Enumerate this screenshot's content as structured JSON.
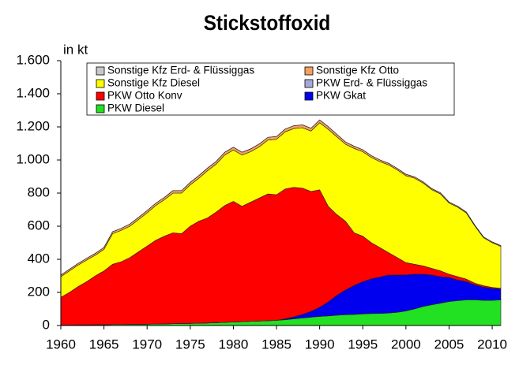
{
  "chart_data": {
    "type": "stacked-area",
    "title": "Stickstoffoxid",
    "y_label": "in kt",
    "x": [
      1960,
      1961,
      1962,
      1963,
      1964,
      1965,
      1966,
      1967,
      1968,
      1969,
      1970,
      1971,
      1972,
      1973,
      1974,
      1975,
      1976,
      1977,
      1978,
      1979,
      1980,
      1981,
      1982,
      1983,
      1984,
      1985,
      1986,
      1987,
      1988,
      1989,
      1990,
      1991,
      1992,
      1993,
      1994,
      1995,
      1996,
      1997,
      1998,
      1999,
      2000,
      2001,
      2002,
      2003,
      2004,
      2005,
      2006,
      2007,
      2008,
      2009,
      2010,
      2011
    ],
    "series": [
      {
        "name": "PKW Diesel",
        "color": "#22e022",
        "values": [
          3,
          3,
          4,
          4,
          5,
          5,
          6,
          6,
          7,
          7,
          8,
          9,
          10,
          11,
          12,
          13,
          14,
          15,
          17,
          19,
          21,
          23,
          25,
          27,
          29,
          31,
          35,
          40,
          45,
          50,
          55,
          58,
          62,
          65,
          67,
          70,
          72,
          73,
          75,
          80,
          88,
          100,
          115,
          125,
          135,
          145,
          150,
          155,
          155,
          152,
          152,
          155
        ]
      },
      {
        "name": "PKW Gkat",
        "color": "#0000ee",
        "values": [
          0,
          0,
          0,
          0,
          0,
          0,
          0,
          0,
          0,
          0,
          0,
          0,
          0,
          0,
          0,
          0,
          0,
          0,
          0,
          0,
          0,
          0,
          0,
          0,
          0,
          0,
          5,
          12,
          22,
          35,
          55,
          85,
          120,
          150,
          175,
          195,
          210,
          220,
          230,
          225,
          218,
          210,
          195,
          180,
          160,
          145,
          125,
          110,
          90,
          80,
          72,
          65
        ]
      },
      {
        "name": "PKW Erd- & Flüssiggas",
        "color": "#a8a8d8",
        "values": [
          0,
          0,
          0,
          0,
          0,
          0,
          0,
          0,
          0,
          0,
          0,
          0,
          0,
          0,
          0,
          0,
          0,
          0,
          0,
          0,
          0,
          0,
          0,
          0,
          0,
          0,
          0,
          0,
          0,
          0,
          0,
          0,
          0,
          0,
          0,
          0,
          0,
          0,
          0,
          0,
          0,
          0,
          0,
          0,
          0,
          0,
          0,
          0,
          0,
          0,
          0,
          0
        ]
      },
      {
        "name": "PKW Otto Konv",
        "color": "#ff0000",
        "values": [
          167,
          197,
          231,
          261,
          295,
          325,
          364,
          379,
          403,
          438,
          472,
          506,
          530,
          549,
          543,
          587,
          616,
          635,
          668,
          706,
          729,
          697,
          720,
          743,
          766,
          759,
          785,
          783,
          763,
          725,
          710,
          577,
          488,
          415,
          318,
          275,
          218,
          177,
          135,
          105,
          74,
          60,
          50,
          40,
          35,
          20,
          20,
          15,
          10,
          8,
          6,
          5
        ]
      },
      {
        "name": "Sonstige Kfz Diesel",
        "color": "#ffff00",
        "values": [
          125,
          130,
          130,
          130,
          125,
          130,
          185,
          190,
          190,
          195,
          200,
          210,
          220,
          240,
          245,
          250,
          260,
          285,
          290,
          305,
          310,
          310,
          305,
          310,
          325,
          335,
          345,
          355,
          365,
          365,
          405,
          465,
          470,
          465,
          510,
          510,
          515,
          520,
          530,
          530,
          525,
          520,
          500,
          475,
          465,
          430,
          420,
          400,
          345,
          290,
          270,
          253
        ]
      },
      {
        "name": "Sonstige Kfz Otto",
        "color": "#f4a060",
        "values": [
          10,
          10,
          10,
          11,
          11,
          12,
          12,
          12,
          13,
          13,
          14,
          14,
          14,
          15,
          15,
          15,
          16,
          16,
          16,
          17,
          17,
          17,
          17,
          17,
          17,
          17,
          17,
          17,
          17,
          17,
          17,
          16,
          15,
          14,
          13,
          12,
          11,
          10,
          10,
          9,
          9,
          8,
          8,
          7,
          7,
          6,
          6,
          6,
          5,
          5,
          5,
          5
        ]
      },
      {
        "name": "Sonstige Kfz Erd- & Flüssiggas",
        "color": "#c8c8c8",
        "values": [
          0,
          0,
          0,
          0,
          0,
          0,
          0,
          0,
          0,
          0,
          0,
          0,
          0,
          0,
          0,
          0,
          0,
          0,
          0,
          0,
          0,
          0,
          0,
          0,
          0,
          0,
          0,
          0,
          0,
          0,
          0,
          0,
          0,
          0,
          0,
          0,
          0,
          0,
          0,
          0,
          0,
          0,
          0,
          0,
          0,
          0,
          0,
          0,
          0,
          0,
          0,
          0
        ]
      }
    ],
    "xlim": [
      1960,
      2011
    ],
    "xticks": [
      1960,
      1965,
      1970,
      1975,
      1980,
      1985,
      1990,
      1995,
      2000,
      2005,
      2010
    ],
    "ylim": [
      0,
      1600
    ],
    "yticks": [
      0,
      200,
      400,
      600,
      800,
      {
        "value": 1000,
        "label": "1.000"
      },
      {
        "value": 1200,
        "label": "1.200"
      },
      {
        "value": 1400,
        "label": "1.400"
      },
      {
        "value": 1600,
        "label": "1.600"
      }
    ]
  }
}
